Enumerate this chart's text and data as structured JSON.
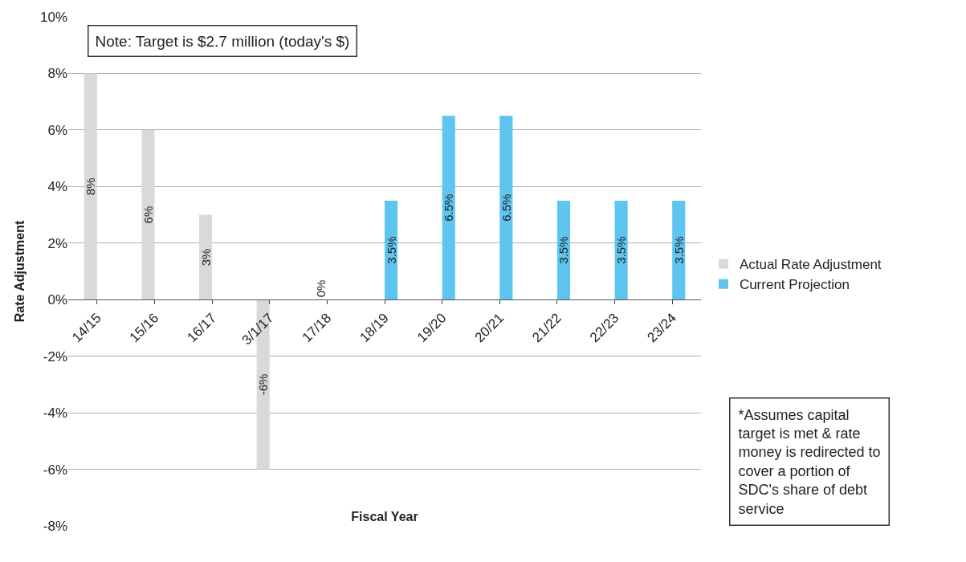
{
  "chart_data": {
    "type": "bar",
    "xlabel": "Fiscal Year",
    "ylabel": "Rate Adjustment",
    "categories": [
      "14/15",
      "15/16",
      "16/17",
      "3/1/17",
      "17/18",
      "18/19",
      "19/20",
      "20/21",
      "21/22",
      "22/23",
      "23/24"
    ],
    "series": [
      {
        "name": "Actual Rate Adjustment",
        "color": "#d9d9d9",
        "values": [
          8,
          6,
          3,
          -6,
          0,
          null,
          null,
          null,
          null,
          null,
          null
        ],
        "value_labels": [
          "8%",
          "6%",
          "3%",
          "-6%",
          "0%",
          null,
          null,
          null,
          null,
          null,
          null
        ]
      },
      {
        "name": "Current Projection",
        "color": "#5ec4f0",
        "values": [
          null,
          null,
          null,
          null,
          null,
          3.5,
          6.5,
          6.5,
          3.5,
          3.5,
          3.5
        ],
        "value_labels": [
          null,
          null,
          null,
          null,
          null,
          "3.5%",
          "6.5%",
          "6.5%",
          "3.5%",
          "3.5%",
          "3.5%"
        ]
      }
    ],
    "ylim": [
      -8,
      10
    ],
    "yticks": [
      {
        "value": -8,
        "label": "-8%"
      },
      {
        "value": -6,
        "label": "-6%"
      },
      {
        "value": -4,
        "label": "-4%"
      },
      {
        "value": -2,
        "label": "-2%"
      },
      {
        "value": 0,
        "label": "0%"
      },
      {
        "value": 2,
        "label": "2%"
      },
      {
        "value": 4,
        "label": "4%"
      },
      {
        "value": 6,
        "label": "6%"
      },
      {
        "value": 8,
        "label": "8%"
      },
      {
        "value": 10,
        "label": "10%"
      }
    ],
    "grid": "y",
    "legend": "right",
    "annotations": [
      "Note: Target is $2.7 million (today's $)",
      "*Assumes capital target is met & rate money is redirected to cover a portion of SDC's share of debt service"
    ]
  }
}
